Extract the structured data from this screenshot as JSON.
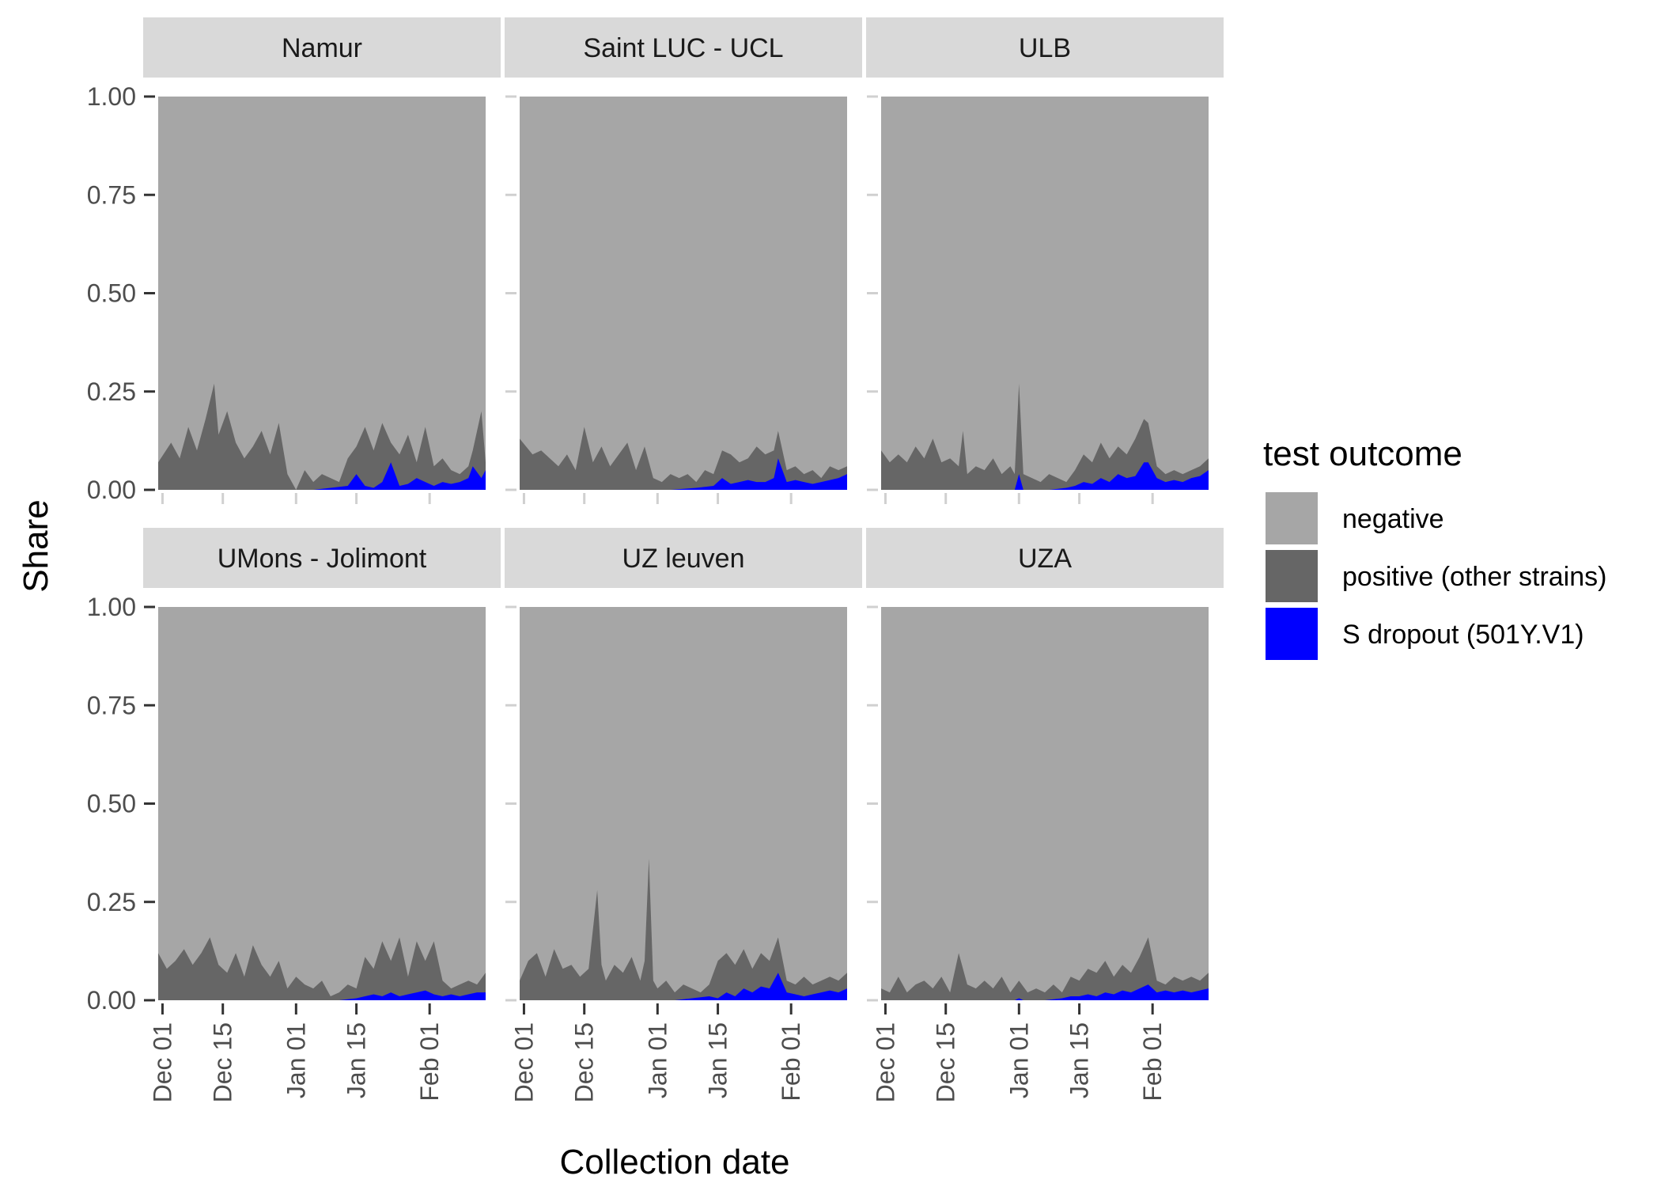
{
  "chart_data": {
    "type": "area",
    "stacked": true,
    "normalized": true,
    "xlabel": "Collection date",
    "ylabel": "Share",
    "ylim": [
      0,
      1
    ],
    "x_range": [
      "2020-11-30",
      "2021-02-14"
    ],
    "x_ticks": [
      {
        "date": "2020-12-01",
        "label": "Dec 01"
      },
      {
        "date": "2020-12-15",
        "label": "Dec 15"
      },
      {
        "date": "2021-01-01",
        "label": "Jan 01"
      },
      {
        "date": "2021-01-15",
        "label": "Jan 15"
      },
      {
        "date": "2021-02-01",
        "label": "Feb 01"
      }
    ],
    "y_ticks": [
      {
        "value": 0,
        "label": "0.00"
      },
      {
        "value": 0.25,
        "label": "0.25"
      },
      {
        "value": 0.5,
        "label": "0.50"
      },
      {
        "value": 0.75,
        "label": "0.75"
      },
      {
        "value": 1,
        "label": "1.00"
      }
    ],
    "legend": {
      "title": "test outcome",
      "placement": "right",
      "entries": [
        {
          "key": "negative",
          "label": "negative",
          "color": "#a6a6a6"
        },
        {
          "key": "positive_other",
          "label": "positive (other strains)",
          "color": "#666666"
        },
        {
          "key": "s_dropout",
          "label": "S dropout (501Y.V1)",
          "color": "#0000ff"
        }
      ]
    },
    "panels": [
      {
        "name": "Namur",
        "positive_total": {
          "x": [
            "2020-11-30",
            "2020-12-03",
            "2020-12-05",
            "2020-12-07",
            "2020-12-09",
            "2020-12-11",
            "2020-12-13",
            "2020-12-14",
            "2020-12-16",
            "2020-12-18",
            "2020-12-20",
            "2020-12-22",
            "2020-12-24",
            "2020-12-26",
            "2020-12-28",
            "2020-12-30",
            "2021-01-01",
            "2021-01-03",
            "2021-01-05",
            "2021-01-07",
            "2021-01-09",
            "2021-01-11",
            "2021-01-13",
            "2021-01-15",
            "2021-01-17",
            "2021-01-19",
            "2021-01-21",
            "2021-01-23",
            "2021-01-25",
            "2021-01-27",
            "2021-01-29",
            "2021-01-31",
            "2021-02-02",
            "2021-02-04",
            "2021-02-06",
            "2021-02-08",
            "2021-02-10",
            "2021-02-11",
            "2021-02-13",
            "2021-02-14"
          ],
          "y": [
            0.07,
            0.12,
            0.08,
            0.16,
            0.1,
            0.18,
            0.27,
            0.14,
            0.2,
            0.12,
            0.08,
            0.11,
            0.15,
            0.09,
            0.17,
            0.04,
            0.0,
            0.05,
            0.02,
            0.04,
            0.03,
            0.02,
            0.08,
            0.11,
            0.16,
            0.1,
            0.17,
            0.12,
            0.09,
            0.14,
            0.07,
            0.16,
            0.06,
            0.08,
            0.05,
            0.04,
            0.06,
            0.1,
            0.2,
            0.07
          ]
        },
        "s_dropout": {
          "x": [
            "2020-11-30",
            "2021-01-05",
            "2021-01-09",
            "2021-01-13",
            "2021-01-15",
            "2021-01-17",
            "2021-01-19",
            "2021-01-21",
            "2021-01-23",
            "2021-01-25",
            "2021-01-27",
            "2021-01-29",
            "2021-01-31",
            "2021-02-02",
            "2021-02-04",
            "2021-02-06",
            "2021-02-08",
            "2021-02-10",
            "2021-02-11",
            "2021-02-13",
            "2021-02-14"
          ],
          "y": [
            0,
            0,
            0.005,
            0.01,
            0.04,
            0.01,
            0.005,
            0.02,
            0.07,
            0.01,
            0.015,
            0.03,
            0.02,
            0.01,
            0.02,
            0.015,
            0.02,
            0.03,
            0.06,
            0.03,
            0.05
          ]
        }
      },
      {
        "name": "Saint LUC - UCL",
        "positive_total": {
          "x": [
            "2020-11-30",
            "2020-12-03",
            "2020-12-05",
            "2020-12-07",
            "2020-12-09",
            "2020-12-11",
            "2020-12-13",
            "2020-12-15",
            "2020-12-17",
            "2020-12-19",
            "2020-12-21",
            "2020-12-23",
            "2020-12-25",
            "2020-12-27",
            "2020-12-29",
            "2020-12-31",
            "2021-01-02",
            "2021-01-04",
            "2021-01-06",
            "2021-01-08",
            "2021-01-10",
            "2021-01-12",
            "2021-01-14",
            "2021-01-16",
            "2021-01-18",
            "2021-01-20",
            "2021-01-22",
            "2021-01-24",
            "2021-01-26",
            "2021-01-28",
            "2021-01-29",
            "2021-01-31",
            "2021-02-02",
            "2021-02-04",
            "2021-02-06",
            "2021-02-08",
            "2021-02-10",
            "2021-02-12",
            "2021-02-14"
          ],
          "y": [
            0.13,
            0.09,
            0.1,
            0.08,
            0.06,
            0.09,
            0.05,
            0.16,
            0.07,
            0.11,
            0.06,
            0.09,
            0.12,
            0.05,
            0.11,
            0.03,
            0.02,
            0.04,
            0.03,
            0.04,
            0.02,
            0.05,
            0.04,
            0.1,
            0.09,
            0.07,
            0.08,
            0.11,
            0.09,
            0.1,
            0.15,
            0.05,
            0.06,
            0.04,
            0.05,
            0.03,
            0.06,
            0.05,
            0.06
          ]
        },
        "s_dropout": {
          "x": [
            "2020-11-30",
            "2021-01-04",
            "2021-01-10",
            "2021-01-14",
            "2021-01-16",
            "2021-01-18",
            "2021-01-20",
            "2021-01-22",
            "2021-01-24",
            "2021-01-26",
            "2021-01-28",
            "2021-01-29",
            "2021-01-31",
            "2021-02-02",
            "2021-02-04",
            "2021-02-06",
            "2021-02-08",
            "2021-02-10",
            "2021-02-12",
            "2021-02-14"
          ],
          "y": [
            0,
            0,
            0.005,
            0.01,
            0.03,
            0.015,
            0.02,
            0.025,
            0.02,
            0.02,
            0.03,
            0.08,
            0.02,
            0.025,
            0.02,
            0.015,
            0.02,
            0.025,
            0.03,
            0.04
          ]
        }
      },
      {
        "name": "ULB",
        "positive_total": {
          "x": [
            "2020-11-30",
            "2020-12-02",
            "2020-12-04",
            "2020-12-06",
            "2020-12-08",
            "2020-12-10",
            "2020-12-12",
            "2020-12-14",
            "2020-12-16",
            "2020-12-18",
            "2020-12-19",
            "2020-12-20",
            "2020-12-22",
            "2020-12-24",
            "2020-12-26",
            "2020-12-28",
            "2020-12-30",
            "2020-12-31",
            "2021-01-01",
            "2021-01-02",
            "2021-01-04",
            "2021-01-06",
            "2021-01-08",
            "2021-01-10",
            "2021-01-12",
            "2021-01-14",
            "2021-01-16",
            "2021-01-18",
            "2021-01-20",
            "2021-01-22",
            "2021-01-24",
            "2021-01-26",
            "2021-01-28",
            "2021-01-30",
            "2021-01-31",
            "2021-02-02",
            "2021-02-04",
            "2021-02-06",
            "2021-02-08",
            "2021-02-10",
            "2021-02-12",
            "2021-02-14"
          ],
          "y": [
            0.1,
            0.07,
            0.09,
            0.07,
            0.11,
            0.08,
            0.13,
            0.07,
            0.08,
            0.06,
            0.15,
            0.04,
            0.06,
            0.05,
            0.08,
            0.04,
            0.06,
            0.04,
            0.27,
            0.04,
            0.03,
            0.02,
            0.04,
            0.03,
            0.02,
            0.05,
            0.09,
            0.07,
            0.12,
            0.08,
            0.11,
            0.09,
            0.13,
            0.18,
            0.17,
            0.06,
            0.04,
            0.05,
            0.04,
            0.05,
            0.06,
            0.08
          ]
        },
        "s_dropout": {
          "x": [
            "2020-11-30",
            "2020-12-31",
            "2021-01-01",
            "2021-01-02",
            "2021-01-08",
            "2021-01-12",
            "2021-01-14",
            "2021-01-16",
            "2021-01-18",
            "2021-01-20",
            "2021-01-22",
            "2021-01-24",
            "2021-01-26",
            "2021-01-28",
            "2021-01-30",
            "2021-01-31",
            "2021-02-02",
            "2021-02-04",
            "2021-02-06",
            "2021-02-08",
            "2021-02-10",
            "2021-02-12",
            "2021-02-14"
          ],
          "y": [
            0,
            0,
            0.04,
            0,
            0,
            0.005,
            0.01,
            0.02,
            0.015,
            0.03,
            0.02,
            0.04,
            0.03,
            0.035,
            0.07,
            0.07,
            0.03,
            0.02,
            0.025,
            0.02,
            0.03,
            0.035,
            0.05
          ]
        }
      },
      {
        "name": "UMons - Jolimont",
        "positive_total": {
          "x": [
            "2020-11-30",
            "2020-12-02",
            "2020-12-04",
            "2020-12-06",
            "2020-12-08",
            "2020-12-10",
            "2020-12-12",
            "2020-12-14",
            "2020-12-16",
            "2020-12-18",
            "2020-12-20",
            "2020-12-22",
            "2020-12-24",
            "2020-12-26",
            "2020-12-28",
            "2020-12-30",
            "2021-01-01",
            "2021-01-03",
            "2021-01-05",
            "2021-01-07",
            "2021-01-09",
            "2021-01-11",
            "2021-01-13",
            "2021-01-15",
            "2021-01-17",
            "2021-01-19",
            "2021-01-21",
            "2021-01-23",
            "2021-01-25",
            "2021-01-27",
            "2021-01-29",
            "2021-01-31",
            "2021-02-02",
            "2021-02-04",
            "2021-02-06",
            "2021-02-08",
            "2021-02-10",
            "2021-02-12",
            "2021-02-14"
          ],
          "y": [
            0.12,
            0.08,
            0.1,
            0.13,
            0.09,
            0.12,
            0.16,
            0.09,
            0.07,
            0.12,
            0.06,
            0.14,
            0.09,
            0.06,
            0.1,
            0.03,
            0.06,
            0.04,
            0.03,
            0.05,
            0.01,
            0.02,
            0.04,
            0.03,
            0.11,
            0.08,
            0.15,
            0.1,
            0.16,
            0.06,
            0.15,
            0.1,
            0.15,
            0.05,
            0.03,
            0.04,
            0.05,
            0.04,
            0.07
          ]
        },
        "s_dropout": {
          "x": [
            "2020-11-30",
            "2021-01-11",
            "2021-01-15",
            "2021-01-17",
            "2021-01-19",
            "2021-01-21",
            "2021-01-23",
            "2021-01-25",
            "2021-01-27",
            "2021-01-29",
            "2021-01-31",
            "2021-02-02",
            "2021-02-04",
            "2021-02-06",
            "2021-02-08",
            "2021-02-10",
            "2021-02-12",
            "2021-02-14"
          ],
          "y": [
            0,
            0,
            0.005,
            0.01,
            0.015,
            0.01,
            0.02,
            0.01,
            0.015,
            0.02,
            0.025,
            0.015,
            0.01,
            0.015,
            0.01,
            0.015,
            0.02,
            0.02
          ]
        }
      },
      {
        "name": "UZ leuven",
        "positive_total": {
          "x": [
            "2020-11-30",
            "2020-12-02",
            "2020-12-04",
            "2020-12-06",
            "2020-12-08",
            "2020-12-10",
            "2020-12-12",
            "2020-12-14",
            "2020-12-16",
            "2020-12-18",
            "2020-12-19",
            "2020-12-20",
            "2020-12-22",
            "2020-12-24",
            "2020-12-26",
            "2020-12-28",
            "2020-12-29",
            "2020-12-30",
            "2020-12-31",
            "2021-01-01",
            "2021-01-03",
            "2021-01-05",
            "2021-01-07",
            "2021-01-09",
            "2021-01-11",
            "2021-01-13",
            "2021-01-15",
            "2021-01-17",
            "2021-01-19",
            "2021-01-21",
            "2021-01-23",
            "2021-01-25",
            "2021-01-27",
            "2021-01-29",
            "2021-01-31",
            "2021-02-02",
            "2021-02-04",
            "2021-02-06",
            "2021-02-08",
            "2021-02-10",
            "2021-02-12",
            "2021-02-14"
          ],
          "y": [
            0.05,
            0.1,
            0.12,
            0.06,
            0.13,
            0.08,
            0.09,
            0.06,
            0.08,
            0.28,
            0.09,
            0.05,
            0.09,
            0.07,
            0.11,
            0.05,
            0.1,
            0.36,
            0.05,
            0.03,
            0.05,
            0.02,
            0.04,
            0.03,
            0.02,
            0.04,
            0.1,
            0.12,
            0.09,
            0.13,
            0.08,
            0.12,
            0.1,
            0.16,
            0.05,
            0.04,
            0.06,
            0.04,
            0.05,
            0.06,
            0.05,
            0.07
          ]
        },
        "s_dropout": {
          "x": [
            "2020-11-30",
            "2021-01-05",
            "2021-01-09",
            "2021-01-13",
            "2021-01-15",
            "2021-01-17",
            "2021-01-19",
            "2021-01-21",
            "2021-01-23",
            "2021-01-25",
            "2021-01-27",
            "2021-01-29",
            "2021-01-31",
            "2021-02-02",
            "2021-02-04",
            "2021-02-06",
            "2021-02-08",
            "2021-02-10",
            "2021-02-12",
            "2021-02-14"
          ],
          "y": [
            0,
            0,
            0.005,
            0.01,
            0.005,
            0.02,
            0.01,
            0.03,
            0.02,
            0.035,
            0.03,
            0.07,
            0.02,
            0.015,
            0.01,
            0.015,
            0.02,
            0.025,
            0.02,
            0.03
          ]
        }
      },
      {
        "name": "UZA",
        "positive_total": {
          "x": [
            "2020-11-30",
            "2020-12-02",
            "2020-12-04",
            "2020-12-06",
            "2020-12-08",
            "2020-12-10",
            "2020-12-12",
            "2020-12-14",
            "2020-12-16",
            "2020-12-18",
            "2020-12-20",
            "2020-12-22",
            "2020-12-24",
            "2020-12-26",
            "2020-12-28",
            "2020-12-30",
            "2021-01-01",
            "2021-01-03",
            "2021-01-05",
            "2021-01-07",
            "2021-01-09",
            "2021-01-11",
            "2021-01-13",
            "2021-01-15",
            "2021-01-17",
            "2021-01-19",
            "2021-01-21",
            "2021-01-23",
            "2021-01-25",
            "2021-01-27",
            "2021-01-29",
            "2021-01-31",
            "2021-02-02",
            "2021-02-04",
            "2021-02-06",
            "2021-02-08",
            "2021-02-10",
            "2021-02-12",
            "2021-02-14"
          ],
          "y": [
            0.03,
            0.02,
            0.06,
            0.02,
            0.04,
            0.05,
            0.03,
            0.06,
            0.02,
            0.12,
            0.04,
            0.03,
            0.05,
            0.03,
            0.06,
            0.02,
            0.05,
            0.02,
            0.03,
            0.02,
            0.04,
            0.02,
            0.06,
            0.05,
            0.08,
            0.07,
            0.1,
            0.06,
            0.09,
            0.07,
            0.11,
            0.16,
            0.05,
            0.04,
            0.06,
            0.05,
            0.06,
            0.05,
            0.07
          ]
        },
        "s_dropout": {
          "x": [
            "2020-11-30",
            "2020-12-31",
            "2021-01-01",
            "2021-01-02",
            "2021-01-07",
            "2021-01-11",
            "2021-01-13",
            "2021-01-15",
            "2021-01-17",
            "2021-01-19",
            "2021-01-21",
            "2021-01-23",
            "2021-01-25",
            "2021-01-27",
            "2021-01-29",
            "2021-01-31",
            "2021-02-02",
            "2021-02-04",
            "2021-02-06",
            "2021-02-08",
            "2021-02-10",
            "2021-02-12",
            "2021-02-14"
          ],
          "y": [
            0,
            0,
            0.005,
            0,
            0,
            0.005,
            0.01,
            0.01,
            0.015,
            0.01,
            0.02,
            0.015,
            0.025,
            0.02,
            0.03,
            0.04,
            0.02,
            0.025,
            0.02,
            0.025,
            0.02,
            0.025,
            0.03
          ]
        }
      }
    ]
  }
}
